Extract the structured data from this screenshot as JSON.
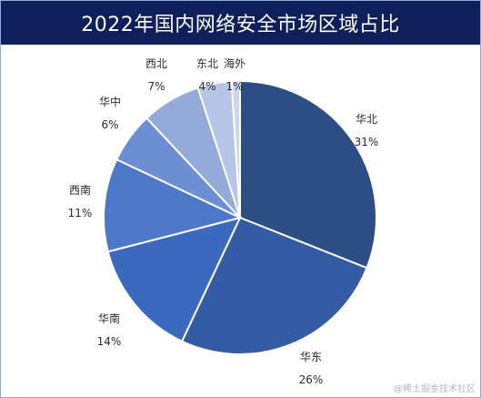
{
  "chart_data": {
    "type": "pie",
    "title": "2022年国内网络安全市场区域占比",
    "slices": [
      {
        "label": "华北",
        "value": 31,
        "pct_text": "31%",
        "color": "#2d4d86"
      },
      {
        "label": "华东",
        "value": 26,
        "pct_text": "26%",
        "color": "#345ca4"
      },
      {
        "label": "华南",
        "value": 14,
        "pct_text": "14%",
        "color": "#3b69be"
      },
      {
        "label": "西南",
        "value": 11,
        "pct_text": "11%",
        "color": "#4d77c9"
      },
      {
        "label": "华中",
        "value": 6,
        "pct_text": "6%",
        "color": "#6b8ed4"
      },
      {
        "label": "西北",
        "value": 7,
        "pct_text": "7%",
        "color": "#93aadb"
      },
      {
        "label": "东北",
        "value": 4,
        "pct_text": "4%",
        "color": "#b6c5e8"
      },
      {
        "label": "海外",
        "value": 1,
        "pct_text": "1%",
        "color": "#cdd6ef"
      }
    ]
  },
  "watermark": "@稀土掘金技术社区"
}
